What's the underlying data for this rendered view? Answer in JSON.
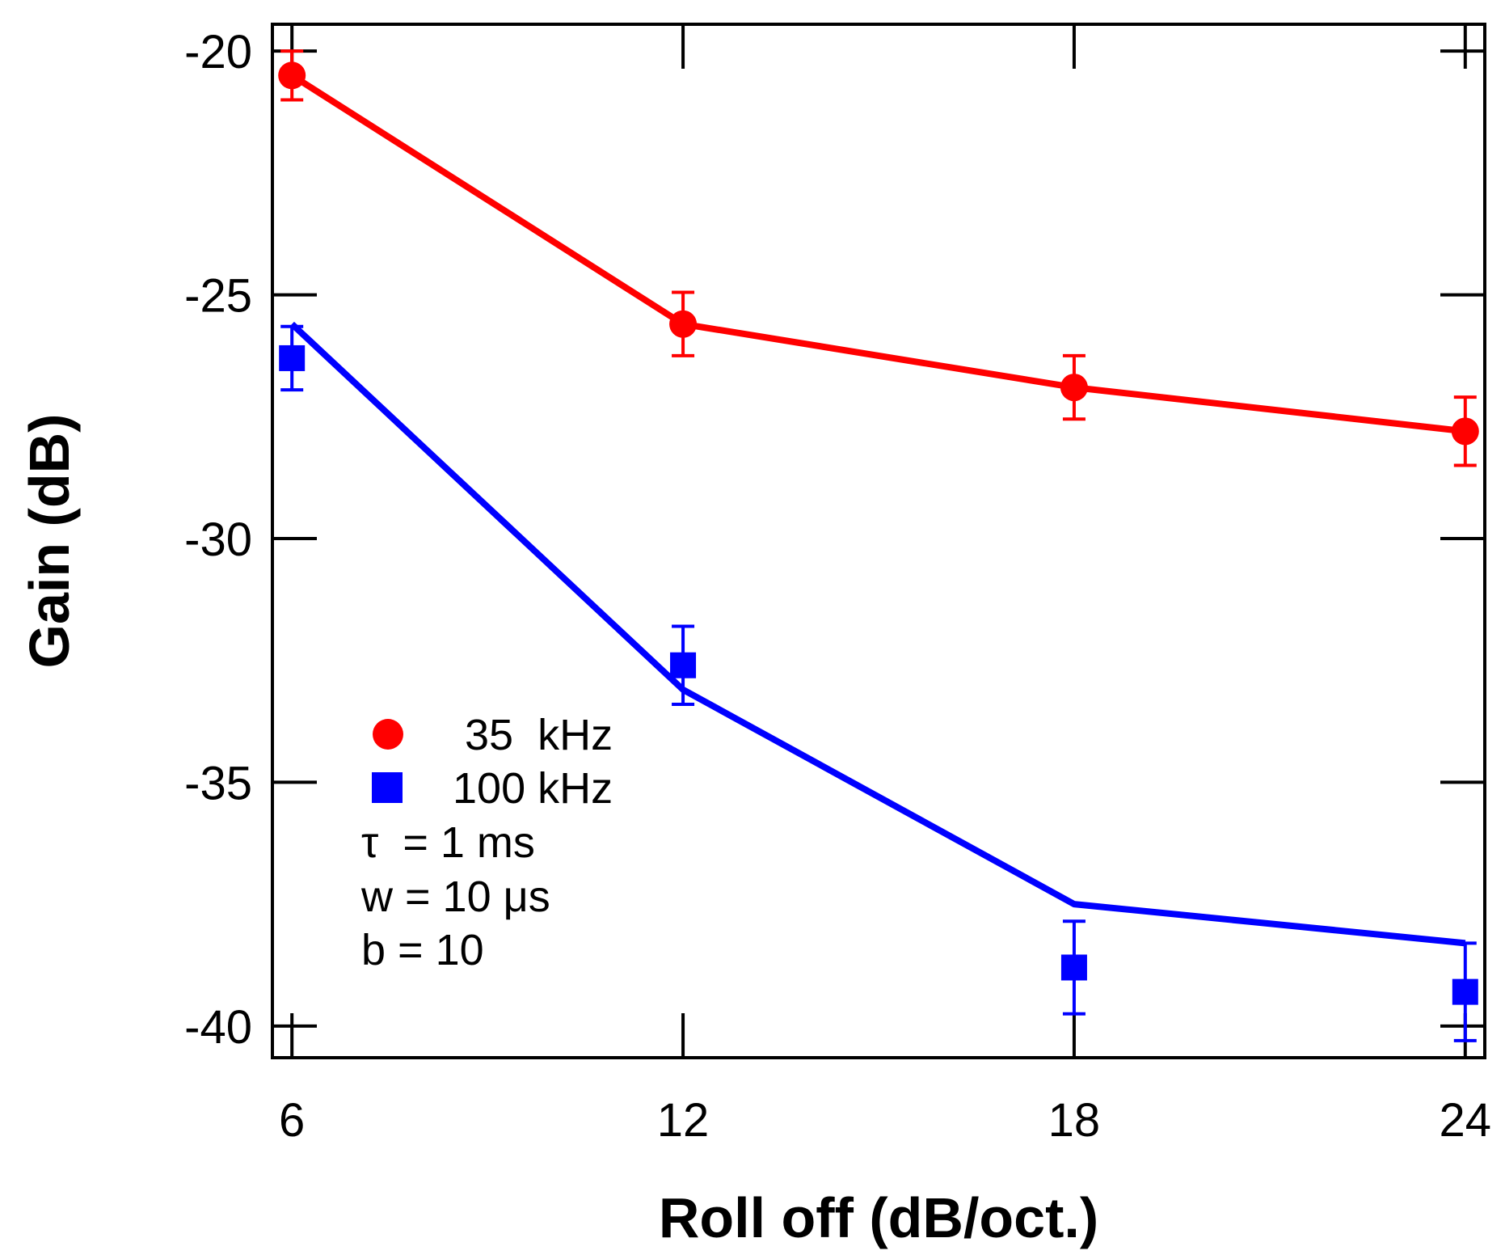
{
  "chart_data": {
    "type": "line",
    "title": "",
    "xlabel": "Roll off (dB/oct.)",
    "ylabel": "Gain (dB)",
    "xlim": [
      5.7,
      24.3
    ],
    "ylim": [
      -40.65,
      -19.45
    ],
    "xticks": [
      6,
      12,
      18,
      24
    ],
    "yticks": [
      -20,
      -25,
      -30,
      -35,
      -40
    ],
    "xtick_labels": [
      "6",
      "12",
      "18",
      "24"
    ],
    "ytick_labels": [
      "-20",
      "-25",
      "-30",
      "-35",
      "-40"
    ],
    "grid": false,
    "legend_position": "bottom-left",
    "series": [
      {
        "name": "35  kHz",
        "color": "#ff0000",
        "marker": "circle",
        "x": [
          6,
          12,
          18,
          24
        ],
        "points": [
          -20.5,
          -25.6,
          -26.9,
          -27.8
        ],
        "errors": [
          0.5,
          0.65,
          0.65,
          0.7
        ],
        "line": [
          -20.5,
          -25.6,
          -26.9,
          -27.8
        ]
      },
      {
        "name": "100 kHz",
        "color": "#0000ff",
        "marker": "square",
        "x": [
          6,
          12,
          18,
          24
        ],
        "points": [
          -26.3,
          -32.6,
          -38.8,
          -39.3
        ],
        "errors": [
          0.65,
          0.8,
          0.95,
          1.0
        ],
        "line": [
          -25.6,
          -33.1,
          -37.5,
          -38.3
        ]
      }
    ],
    "annotations": [
      "τ  = 1 ms",
      "w = 10 μs",
      "b = 10"
    ]
  }
}
